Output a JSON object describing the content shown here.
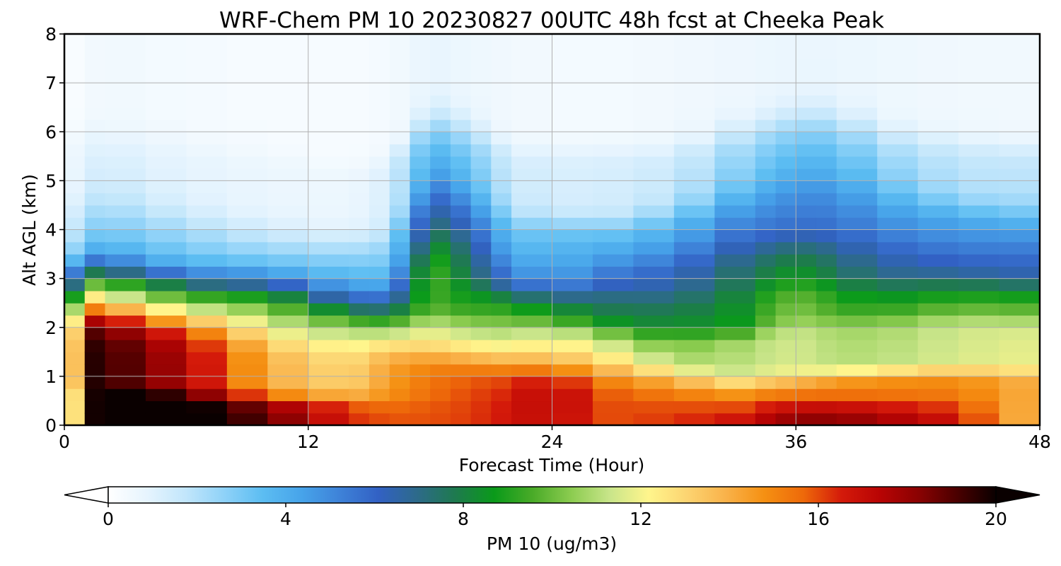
{
  "chart_data": {
    "type": "heatmap",
    "title": "WRF-Chem PM 10  20230827 00UTC 48h fcst at Cheeka Peak",
    "xlabel": "Forecast Time (Hour)",
    "ylabel": "Alt AGL (km)",
    "xlim": [
      0,
      48
    ],
    "ylim": [
      0,
      8
    ],
    "xticks": [
      0,
      12,
      24,
      36,
      48
    ],
    "yticks": [
      0,
      1,
      2,
      3,
      4,
      5,
      6,
      7,
      8
    ],
    "grid": true,
    "colorbar": {
      "label": "PM 10  (ug/m3)",
      "range": [
        0,
        20
      ],
      "ticks": [
        0,
        4,
        8,
        12,
        16,
        20
      ],
      "extend": "both",
      "orientation": "horizontal",
      "colors": [
        "#ffffff",
        "#e6f4fe",
        "#c2e6fb",
        "#8fd2f8",
        "#5cbdf2",
        "#47a4ea",
        "#3e82d8",
        "#3261c4",
        "#2d6a8a",
        "#1e7a4e",
        "#0a9a1a",
        "#4aab28",
        "#8ccc50",
        "#c9e58a",
        "#fff58c",
        "#fcd471",
        "#f9b24a",
        "#f59012",
        "#ee6a0a",
        "#d41a0a",
        "#b80404",
        "#8a0202",
        "#4a0000",
        "#0a0000"
      ]
    },
    "x": [
      0,
      1,
      2,
      4,
      6,
      8,
      10,
      12,
      14,
      15,
      16,
      17,
      18,
      19,
      20,
      21,
      22,
      24,
      26,
      28,
      30,
      32,
      34,
      35,
      36,
      37,
      38,
      40,
      42,
      44,
      46,
      48
    ],
    "y": [
      0,
      0.25,
      0.5,
      0.75,
      1,
      1.25,
      1.5,
      1.75,
      2,
      2.25,
      2.5,
      2.75,
      3,
      3.25,
      3.5,
      3.75,
      4,
      4.25,
      4.5,
      4.75,
      5,
      5.25,
      5.5,
      5.75,
      6,
      6.25,
      6.5,
      6.75,
      7,
      7.5,
      8
    ],
    "annotations": []
  }
}
